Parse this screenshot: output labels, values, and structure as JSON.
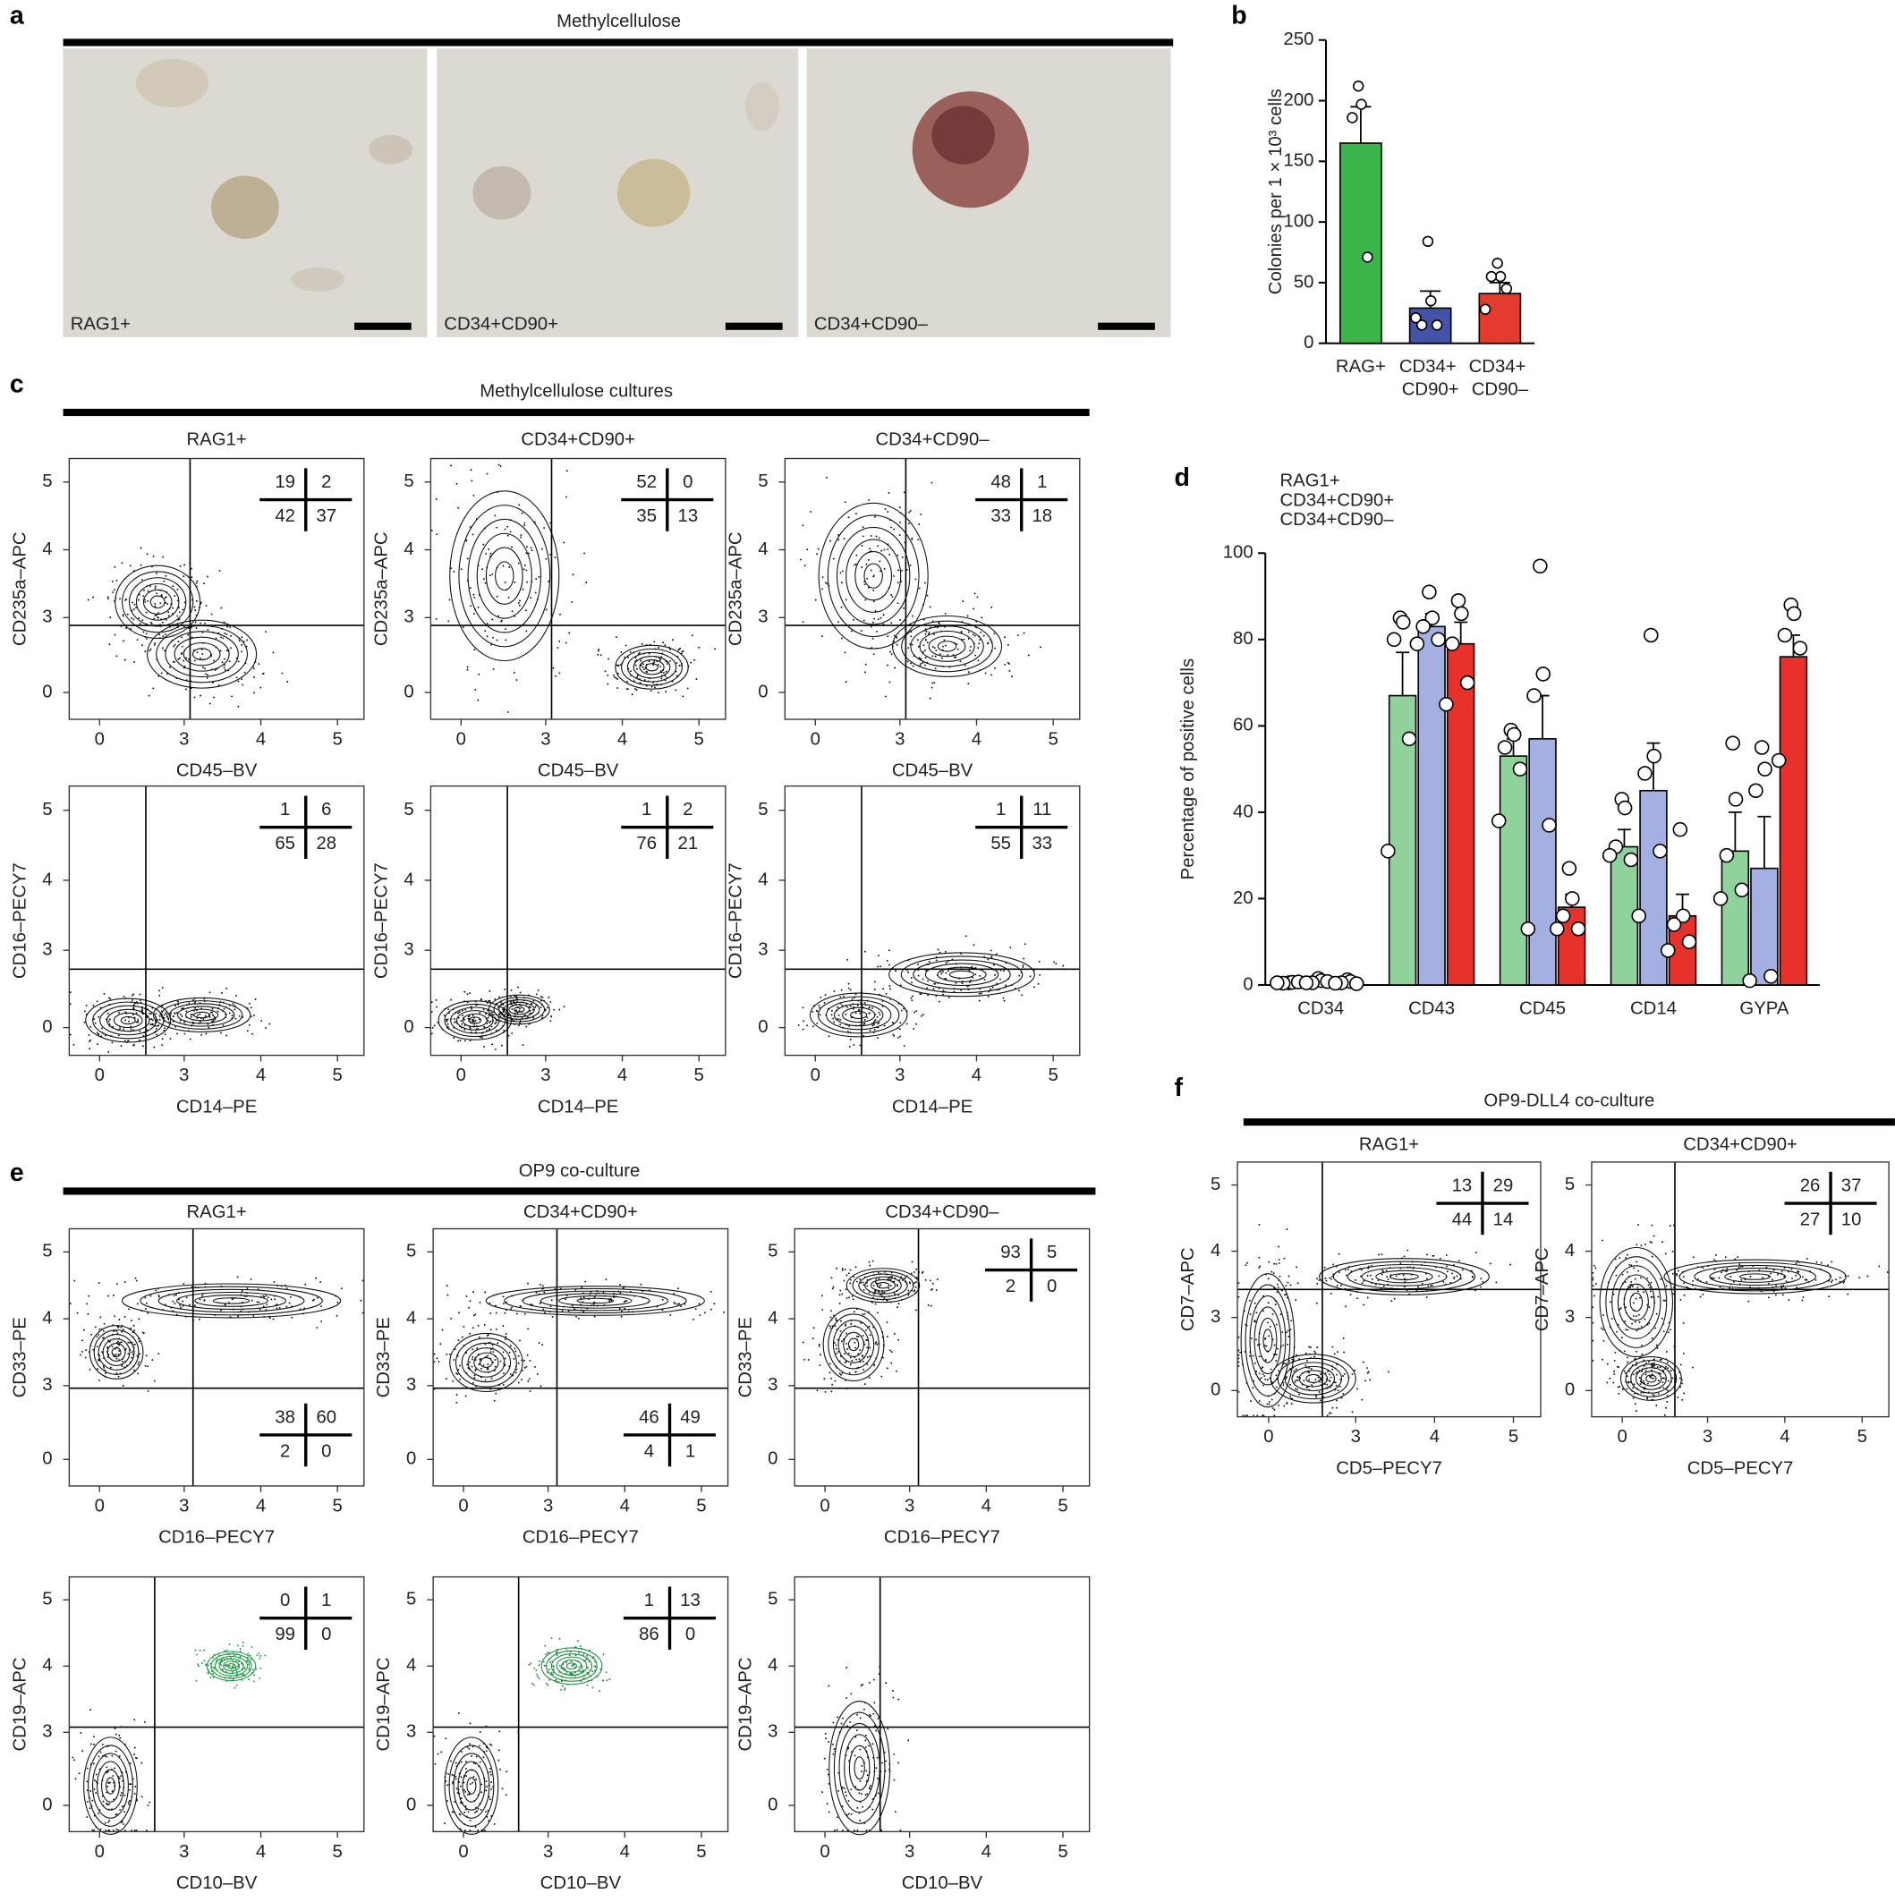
{
  "panel_a": {
    "label": "a",
    "title": "Methylcellulose",
    "images": [
      {
        "label": "RAG1+",
        "color": "#3cb54a"
      },
      {
        "label": "CD34+CD90+",
        "color": "#5a5fb0"
      },
      {
        "label": "CD34+CD90–",
        "color": "#e33b2d"
      }
    ]
  },
  "chart_data": [
    {
      "panel": "b",
      "type": "bar",
      "ylabel": "Colonies per 1 × 10³ cells",
      "categories": [
        "RAG+",
        "CD34+ CD90+",
        "CD34+ CD90–"
      ],
      "values": [
        165,
        29,
        41
      ],
      "errors": [
        30,
        14,
        9
      ],
      "points": [
        [
          212,
          197,
          186,
          71
        ],
        [
          84,
          35,
          15,
          15,
          21
        ],
        [
          66,
          55,
          55,
          45,
          28
        ]
      ],
      "colors": [
        "#3cb54a",
        "#4253a8",
        "#e33b2d"
      ],
      "ylim": [
        0,
        250
      ],
      "yticks": [
        0,
        50,
        100,
        150,
        200,
        250
      ]
    },
    {
      "panel": "d",
      "type": "bar",
      "ylabel": "Percentage of positive cells",
      "categories": [
        "CD34",
        "CD43",
        "CD45",
        "CD14",
        "GYPA"
      ],
      "legend": "top-left",
      "ylim": [
        0,
        100
      ],
      "yticks": [
        0,
        20,
        40,
        60,
        80,
        100
      ],
      "series": [
        {
          "name": "RAG1+",
          "color": "#8fd29b",
          "values": [
            0.5,
            67,
            53,
            32,
            31
          ],
          "errors": [
            0.3,
            10,
            4,
            4,
            9
          ],
          "points": [
            [
              0.5,
              0.6,
              0.4,
              0.7,
              0.5
            ],
            [
              85,
              84,
              80,
              57,
              31
            ],
            [
              59,
              58,
              55,
              50,
              38
            ],
            [
              43,
              41,
              32,
              29,
              30
            ],
            [
              56,
              43,
              30,
              22,
              20
            ]
          ]
        },
        {
          "name": "CD34+CD90+",
          "color": "#a5b0e2",
          "values": [
            0.8,
            83,
            57,
            45,
            27
          ],
          "errors": [
            0.3,
            3,
            10,
            11,
            12
          ],
          "points": [
            [
              1.5,
              1,
              0.5,
              0.8,
              0.5
            ],
            [
              91,
              85,
              83,
              80,
              79
            ],
            [
              97,
              72,
              67,
              37,
              13
            ],
            [
              81,
              53,
              49,
              31,
              16
            ],
            [
              55,
              50,
              45,
              2,
              1
            ]
          ]
        },
        {
          "name": "CD34+CD90–",
          "color": "#e8312a",
          "values": [
            0.6,
            79,
            18,
            16,
            76
          ],
          "errors": [
            0.2,
            5,
            3,
            5,
            5
          ],
          "points": [
            [
              1.2,
              0.8,
              0.5,
              0.3,
              0.4
            ],
            [
              89,
              86,
              79,
              70,
              65
            ],
            [
              27,
              20,
              16,
              13,
              13
            ],
            [
              36,
              16,
              14,
              10,
              8
            ],
            [
              88,
              86,
              81,
              78,
              52
            ]
          ]
        }
      ]
    }
  ],
  "flow_panels": [
    {
      "label": "c",
      "title": "Methylcellulose cultures",
      "xticks": [
        0,
        3,
        4,
        5
      ],
      "yticks": [
        0,
        3,
        4,
        5
      ],
      "columns": [
        {
          "name": "RAG1+",
          "color": "#3cb54a"
        },
        {
          "name": "CD34+CD90+",
          "color": "#5a5fb0"
        },
        {
          "name": "CD34+CD90–",
          "color": "#e33b2d"
        }
      ],
      "rows": [
        {
          "xlabel": "CD45–BV",
          "ylabel": "CD235a–APC",
          "plots": [
            {
              "quadrants": [
                19,
                2,
                42,
                37
              ],
              "corner": "top-right"
            },
            {
              "quadrants": [
                52,
                0,
                35,
                13
              ],
              "corner": "top-right"
            },
            {
              "quadrants": [
                48,
                1,
                33,
                18
              ],
              "corner": "top-right"
            }
          ]
        },
        {
          "xlabel": "CD14–PE",
          "ylabel": "CD16–PECY7",
          "plots": [
            {
              "quadrants": [
                1,
                6,
                65,
                28
              ],
              "corner": "top-right"
            },
            {
              "quadrants": [
                1,
                2,
                76,
                21
              ],
              "corner": "top-right"
            },
            {
              "quadrants": [
                1,
                11,
                55,
                33
              ],
              "corner": "top-right"
            }
          ]
        }
      ]
    },
    {
      "label": "e",
      "title": "OP9 co-culture",
      "xticks": [
        0,
        3,
        4,
        5
      ],
      "yticks": [
        0,
        3,
        4,
        5
      ],
      "columns": [
        {
          "name": "RAG1+",
          "color": "#3cb54a"
        },
        {
          "name": "CD34+CD90+",
          "color": "#5a5fb0"
        },
        {
          "name": "CD34+CD90–",
          "color": "#e33b2d"
        }
      ],
      "rows": [
        {
          "xlabel": "CD16–PECY7",
          "ylabel": "CD33–PE",
          "plots": [
            {
              "quadrants": [
                38,
                60,
                2,
                0
              ],
              "corner": "bottom-right"
            },
            {
              "quadrants": [
                46,
                49,
                4,
                1
              ],
              "corner": "bottom-right"
            },
            {
              "quadrants": [
                93,
                5,
                2,
                0
              ],
              "corner": "top-right"
            }
          ]
        },
        {
          "xlabel": "CD10–BV",
          "ylabel": "CD19–APC",
          "plots": [
            {
              "quadrants": [
                0,
                1,
                99,
                0
              ],
              "corner": "top-right"
            },
            {
              "quadrants": [
                1,
                13,
                86,
                0
              ],
              "corner": "top-right"
            },
            {}
          ]
        }
      ]
    },
    {
      "label": "f",
      "title": "OP9-DLL4 co-culture",
      "xticks": [
        0,
        3,
        4,
        5
      ],
      "yticks": [
        0,
        3,
        4,
        5
      ],
      "columns": [
        {
          "name": "RAG1+",
          "color": "#3cb54a"
        },
        {
          "name": "CD34+CD90+",
          "color": "#5a5fb0"
        }
      ],
      "rows": [
        {
          "xlabel": "CD5–PECY7",
          "ylabel": "CD7–APC",
          "plots": [
            {
              "quadrants": [
                13,
                29,
                44,
                14
              ],
              "corner": "top-right"
            },
            {
              "quadrants": [
                26,
                37,
                27,
                10
              ],
              "corner": "top-right"
            }
          ]
        }
      ]
    }
  ]
}
